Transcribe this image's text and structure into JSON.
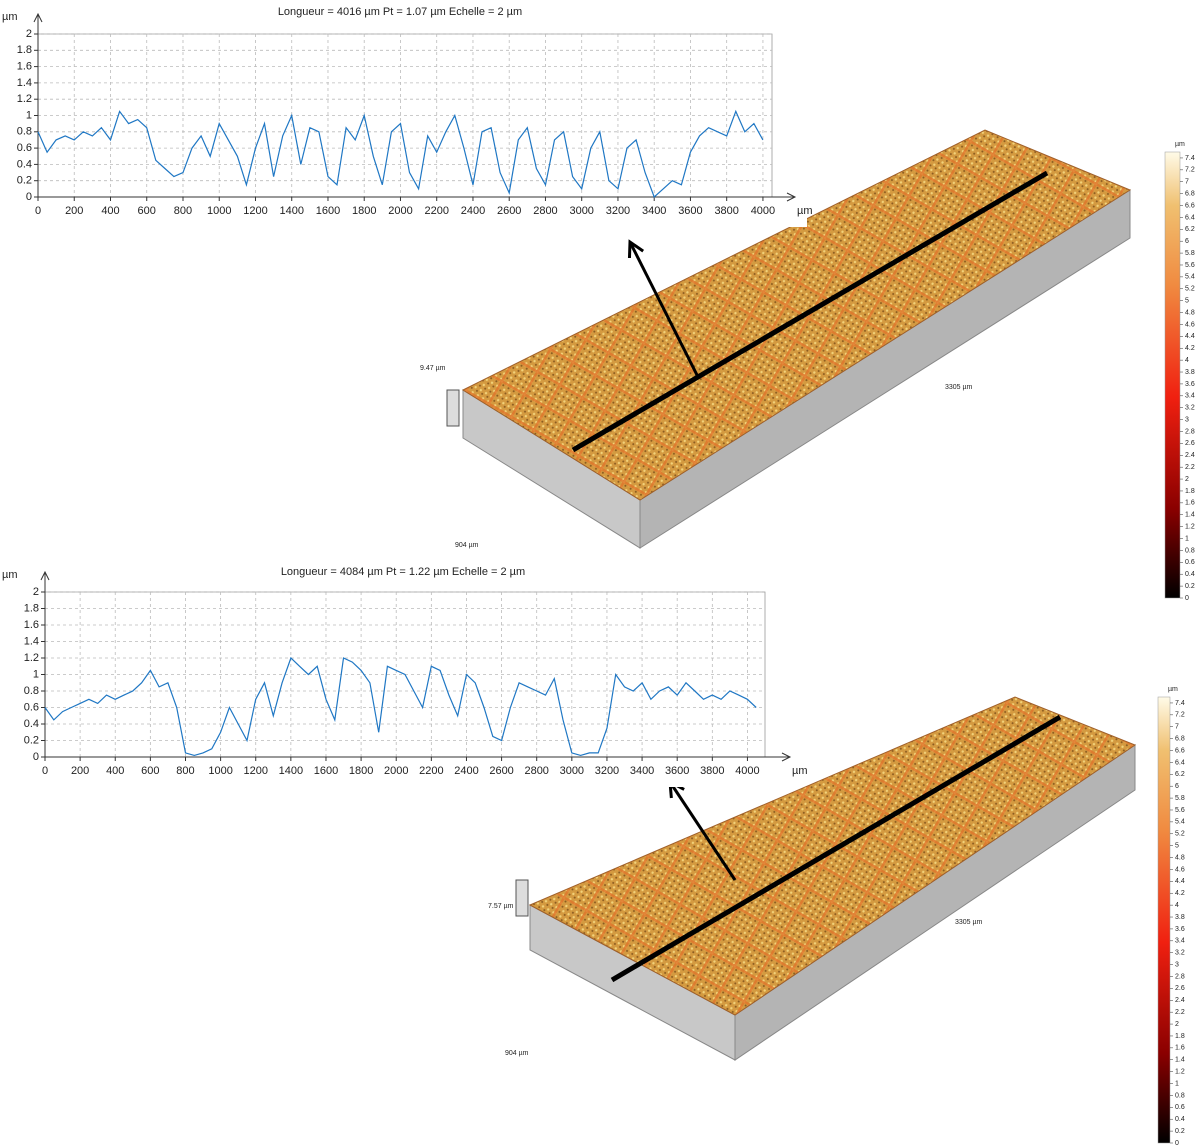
{
  "chart_data": [
    {
      "type": "line",
      "title": "Longueur = 4016 µm  Pt = 1.07 µm  Echelle = 2 µm",
      "y_label": "µm",
      "x_label": "µm",
      "xlim": [
        0,
        4050
      ],
      "ylim": [
        0,
        2
      ],
      "xticks": [
        0,
        200,
        400,
        600,
        800,
        1000,
        1200,
        1400,
        1600,
        1800,
        2000,
        2200,
        2400,
        2600,
        2800,
        3000,
        3200,
        3400,
        3600,
        3800,
        4000
      ],
      "yticks": [
        0,
        0.2,
        0.4,
        0.6,
        0.8,
        1,
        1.2,
        1.4,
        1.6,
        1.8,
        2
      ],
      "grid": true,
      "color": "#1f77c4",
      "x": [
        0,
        50,
        100,
        150,
        200,
        250,
        300,
        350,
        400,
        450,
        500,
        550,
        600,
        650,
        700,
        750,
        800,
        850,
        900,
        950,
        1000,
        1050,
        1100,
        1150,
        1200,
        1250,
        1300,
        1350,
        1400,
        1450,
        1500,
        1550,
        1600,
        1650,
        1700,
        1750,
        1800,
        1850,
        1900,
        1950,
        2000,
        2050,
        2100,
        2150,
        2200,
        2250,
        2300,
        2350,
        2400,
        2450,
        2500,
        2550,
        2600,
        2650,
        2700,
        2750,
        2800,
        2850,
        2900,
        2950,
        3000,
        3050,
        3100,
        3150,
        3200,
        3250,
        3300,
        3350,
        3400,
        3450,
        3500,
        3550,
        3600,
        3650,
        3700,
        3750,
        3800,
        3850,
        3900,
        3950,
        4000
      ],
      "values": [
        0.8,
        0.55,
        0.7,
        0.75,
        0.7,
        0.8,
        0.75,
        0.85,
        0.7,
        1.05,
        0.9,
        0.95,
        0.85,
        0.45,
        0.35,
        0.25,
        0.3,
        0.6,
        0.75,
        0.5,
        0.9,
        0.7,
        0.5,
        0.15,
        0.6,
        0.9,
        0.25,
        0.75,
        1.0,
        0.4,
        0.85,
        0.8,
        0.25,
        0.15,
        0.85,
        0.7,
        1.0,
        0.5,
        0.15,
        0.8,
        0.9,
        0.3,
        0.1,
        0.75,
        0.55,
        0.8,
        1.0,
        0.6,
        0.15,
        0.8,
        0.85,
        0.3,
        0.05,
        0.7,
        0.85,
        0.35,
        0.15,
        0.7,
        0.8,
        0.25,
        0.1,
        0.6,
        0.8,
        0.2,
        0.1,
        0.6,
        0.7,
        0.3,
        0.0,
        0.1,
        0.2,
        0.15,
        0.55,
        0.75,
        0.85,
        0.8,
        0.75,
        1.05,
        0.8,
        0.9,
        0.7
      ],
      "surface": {
        "height_label": "9.47 µm",
        "length_label": "3305 µm",
        "width_label": "904 µm",
        "colorbar_unit": "µm",
        "colorbar_lim": [
          0,
          7.5
        ],
        "colorbar_ticks": [
          0,
          0.2,
          0.4,
          0.6,
          0.8,
          1,
          1.2,
          1.4,
          1.6,
          1.8,
          2,
          2.2,
          2.4,
          2.6,
          2.8,
          3,
          3.2,
          3.4,
          3.6,
          3.8,
          4,
          4.2,
          4.4,
          4.6,
          4.8,
          5,
          5.2,
          5.4,
          5.6,
          5.8,
          6,
          6.2,
          6.4,
          6.6,
          6.8,
          7,
          7.2,
          7.4
        ]
      }
    },
    {
      "type": "line",
      "title": "Longueur = 4084 µm  Pt = 1.22 µm  Echelle = 2 µm",
      "y_label": "µm",
      "x_label": "µm",
      "xlim": [
        0,
        4100
      ],
      "ylim": [
        0,
        2
      ],
      "xticks": [
        0,
        200,
        400,
        600,
        800,
        1000,
        1200,
        1400,
        1600,
        1800,
        2000,
        2200,
        2400,
        2600,
        2800,
        3000,
        3200,
        3400,
        3600,
        3800,
        4000
      ],
      "yticks": [
        0,
        0.2,
        0.4,
        0.6,
        0.8,
        1,
        1.2,
        1.4,
        1.6,
        1.8,
        2
      ],
      "grid": true,
      "color": "#1f77c4",
      "x": [
        0,
        50,
        100,
        150,
        200,
        250,
        300,
        350,
        400,
        450,
        500,
        550,
        600,
        650,
        700,
        750,
        800,
        850,
        900,
        950,
        1000,
        1050,
        1100,
        1150,
        1200,
        1250,
        1300,
        1350,
        1400,
        1450,
        1500,
        1550,
        1600,
        1650,
        1700,
        1750,
        1800,
        1850,
        1900,
        1950,
        2000,
        2050,
        2100,
        2150,
        2200,
        2250,
        2300,
        2350,
        2400,
        2450,
        2500,
        2550,
        2600,
        2650,
        2700,
        2750,
        2800,
        2850,
        2900,
        2950,
        3000,
        3050,
        3100,
        3150,
        3200,
        3250,
        3300,
        3350,
        3400,
        3450,
        3500,
        3550,
        3600,
        3650,
        3700,
        3750,
        3800,
        3850,
        3900,
        3950,
        4000,
        4050
      ],
      "values": [
        0.6,
        0.45,
        0.55,
        0.6,
        0.65,
        0.7,
        0.65,
        0.75,
        0.7,
        0.75,
        0.8,
        0.9,
        1.05,
        0.85,
        0.9,
        0.6,
        0.05,
        0.02,
        0.05,
        0.1,
        0.3,
        0.6,
        0.4,
        0.2,
        0.7,
        0.9,
        0.5,
        0.9,
        1.2,
        1.1,
        1.0,
        1.1,
        0.7,
        0.45,
        1.2,
        1.15,
        1.05,
        0.9,
        0.3,
        1.1,
        1.05,
        1.0,
        0.8,
        0.6,
        1.1,
        1.05,
        0.75,
        0.5,
        1.0,
        0.9,
        0.6,
        0.25,
        0.2,
        0.6,
        0.9,
        0.85,
        0.8,
        0.75,
        0.95,
        0.45,
        0.05,
        0.02,
        0.05,
        0.05,
        0.35,
        1.0,
        0.85,
        0.8,
        0.9,
        0.7,
        0.8,
        0.85,
        0.75,
        0.9,
        0.8,
        0.7,
        0.75,
        0.7,
        0.8,
        0.75,
        0.7,
        0.6
      ],
      "surface": {
        "height_label": "7.57 µm",
        "length_label": "3305 µm",
        "width_label": "904 µm",
        "colorbar_unit": "µm",
        "colorbar_lim": [
          0,
          7.5
        ],
        "colorbar_ticks": [
          0,
          0.2,
          0.4,
          0.6,
          0.8,
          1,
          1.2,
          1.4,
          1.6,
          1.8,
          2,
          2.2,
          2.4,
          2.6,
          2.8,
          3,
          3.2,
          3.4,
          3.6,
          3.8,
          4,
          4.2,
          4.4,
          4.6,
          4.8,
          5,
          5.2,
          5.4,
          5.6,
          5.8,
          6,
          6.2,
          6.4,
          6.6,
          6.8,
          7,
          7.2,
          7.4
        ]
      }
    }
  ]
}
